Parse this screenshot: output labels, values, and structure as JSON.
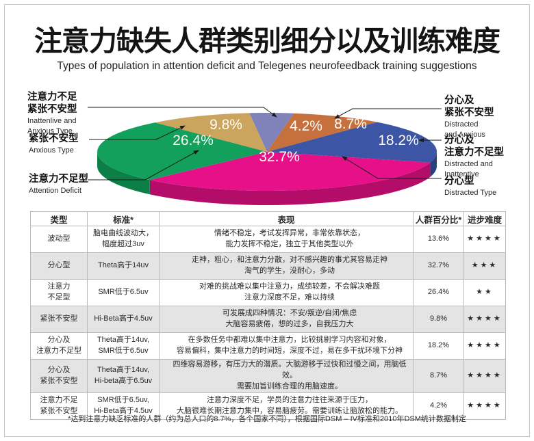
{
  "header": {
    "title_zh": "注意力缺失人群类别细分以及训练难度",
    "subtitle_en": "Types of population in attention deficit and Telegenes neurofeedback training suggestions"
  },
  "chart_data": [
    {
      "type": "pie",
      "title": "注意力缺失人群类别细分",
      "legend_position": "callouts-around-pie",
      "style": "3d-ellipse",
      "slices": [
        {
          "label_zh": "注意力不足紧张不安型",
          "label_en": "Inattenlive and Anxious Type",
          "value": 4.2,
          "pct": "4.2%",
          "color": "#7f83b9",
          "side": "#5f639b"
        },
        {
          "label_zh": "分心及紧张不安型",
          "label_en": "Distracted and Anxious",
          "value": 8.7,
          "pct": "8.7%",
          "color": "#c6713d",
          "side": "#9e5527"
        },
        {
          "label_zh": "分心及注意力不足型",
          "label_en": "Distracted and Inattentive",
          "value": 18.2,
          "pct": "18.2%",
          "color": "#3c55a4",
          "side": "#2c3f7d"
        },
        {
          "label_zh": "分心型",
          "label_en": "Distracted Type",
          "value": 32.7,
          "pct": "32.7%",
          "color": "#e61089",
          "side": "#b40c69"
        },
        {
          "label_zh": "注意力不足型",
          "label_en": "Attention Deficit",
          "value": 26.4,
          "pct": "26.4%",
          "color": "#12a05c",
          "side": "#0c7f47"
        },
        {
          "label_zh": "紧张不安型",
          "label_en": "Anxious Type",
          "value": 9.8,
          "pct": "9.8%",
          "color": "#cba55e",
          "side": "#a5813f"
        }
      ]
    },
    {
      "type": "table",
      "headers": [
        "类型",
        "标准*",
        "表现",
        "人群百分比*",
        "进步难度"
      ],
      "rows_summary": "see table key"
    }
  ],
  "callouts_left": [
    {
      "zh": "注意力不足\n紧张不安型",
      "en": "Inattenlive and\nAnxious Type"
    },
    {
      "zh": "紧张不安型",
      "en": "Anxious Type"
    },
    {
      "zh": "注意力不足型",
      "en": "Attention Deficit"
    }
  ],
  "callouts_right": [
    {
      "zh": "分心及\n紧张不安型",
      "en": "Distracted\nand Anxious"
    },
    {
      "zh": "分心及\n注意力不足型",
      "en": "Distracted and\nInattentive"
    },
    {
      "zh": "分心型",
      "en": "Distracted Type"
    }
  ],
  "table": {
    "headers": [
      "类型",
      "标准*",
      "表现",
      "人群百分比*",
      "进步难度"
    ],
    "rows": [
      {
        "type": "波动型",
        "standard": "脑电曲线波动大，\n幅度超过3uv",
        "behavior": "情绪不稳定，考试发挥异常，非常依靠状态，\n能力发挥不稳定，独立于其他类型以外",
        "percent": "13.6%",
        "difficulty": 4
      },
      {
        "type": "分心型",
        "standard": "Theta高于14uv",
        "behavior": "走神，粗心，和注意力分散，对不感兴趣的事尤其容易走神\n淘气的学生，没耐心，多动",
        "percent": "32.7%",
        "difficulty": 3
      },
      {
        "type": "注意力\n不足型",
        "standard": "SMR低于6.5uv",
        "behavior": "对难的挑战难以集中注意力，成绩较差，不会解决难题\n注意力深度不足，难以持续",
        "percent": "26.4%",
        "difficulty": 2
      },
      {
        "type": "紧张不安型",
        "standard": "Hi-Beta高于4.5uv",
        "behavior": "可发展成四种情况：不安/叛逆/自闭/焦虑\n大脑容易疲倦，想的过多，自我压力大",
        "percent": "9.8%",
        "difficulty": 4
      },
      {
        "type": "分心及\n注意力不足型",
        "standard": "Theta高于14uv,\nSMR低于6.5uv",
        "behavior": "在多数任务中都难以集中注意力，比较挑剔学习内容和对象，\n容易偏科，集中注意力的时间短，深度不过，易在多干扰环境下分神",
        "percent": "18.2%",
        "difficulty": 4
      },
      {
        "type": "分心及\n紧张不安型",
        "standard": "Theta高于14uv,\nHi-beta高于6.5uv",
        "behavior": "四维容易游移，有压力大的潜质。大脑游移于过快和过慢之间，用脑低效。\n需要加旨训练合理的用脑速度。",
        "percent": "8.7%",
        "difficulty": 4
      },
      {
        "type": "注意力不足\n紧张不安型",
        "standard": "SMR低于6.5uv,\nHi-Beta高于4.5uv",
        "behavior": "注意力深度不足，学员的注意力往往来源于压力，\n大脑很难长期注意力集中，容易脑疲劳。需要训练让脑放松的能力。",
        "percent": "4.2%",
        "difficulty": 4
      }
    ]
  },
  "footnote": "*达到注意力缺乏标准的人群（约为总人口的8.7%，各个国家不同），根据国际DSM – IV标准和2010年DSM统计数据制定"
}
